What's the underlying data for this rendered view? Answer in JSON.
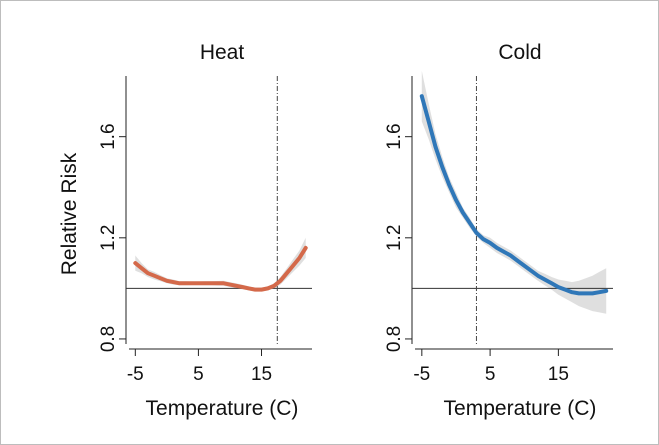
{
  "chart_data": [
    {
      "type": "line",
      "title": "Heat",
      "xlabel": "Temperature (C)",
      "ylabel": "Relative Risk",
      "xlim": [
        -6,
        23
      ],
      "ylim": [
        0.78,
        1.84
      ],
      "xticks": [
        "-5",
        "5",
        "15"
      ],
      "yticks": [
        "0.8",
        "1.2",
        "1.6"
      ],
      "reference_hline": 1.0,
      "threshold_vline": 17.5,
      "line_color": "#d4694a",
      "band_color": "#d9d9d9",
      "series": [
        {
          "x": [
            -5,
            -4,
            -3,
            -2,
            -1,
            0,
            1,
            2,
            3,
            4,
            5,
            6,
            7,
            8,
            9,
            10,
            11,
            12,
            13,
            14,
            15,
            16,
            17,
            18,
            19,
            20,
            21,
            22
          ],
          "values": [
            1.1,
            1.08,
            1.06,
            1.05,
            1.04,
            1.03,
            1.025,
            1.02,
            1.02,
            1.02,
            1.02,
            1.02,
            1.02,
            1.02,
            1.02,
            1.015,
            1.01,
            1.005,
            1.0,
            0.995,
            0.995,
            1.0,
            1.01,
            1.03,
            1.06,
            1.09,
            1.12,
            1.16
          ],
          "lower": [
            1.07,
            1.06,
            1.045,
            1.035,
            1.028,
            1.02,
            1.015,
            1.012,
            1.012,
            1.013,
            1.013,
            1.012,
            1.012,
            1.011,
            1.01,
            1.005,
            1.0,
            0.996,
            0.992,
            0.988,
            0.988,
            0.992,
            1.0,
            1.015,
            1.04,
            1.065,
            1.09,
            1.12
          ],
          "upper": [
            1.13,
            1.1,
            1.075,
            1.065,
            1.052,
            1.04,
            1.035,
            1.028,
            1.028,
            1.027,
            1.027,
            1.028,
            1.028,
            1.029,
            1.03,
            1.025,
            1.02,
            1.014,
            1.008,
            1.002,
            1.002,
            1.008,
            1.02,
            1.045,
            1.08,
            1.115,
            1.15,
            1.2
          ]
        }
      ]
    },
    {
      "type": "line",
      "title": "Cold",
      "xlabel": "Temperature (C)",
      "ylabel": "",
      "xlim": [
        -6,
        23
      ],
      "ylim": [
        0.78,
        1.84
      ],
      "xticks": [
        "-5",
        "5",
        "15"
      ],
      "yticks": [
        "0.8",
        "1.2",
        "1.6"
      ],
      "reference_hline": 1.0,
      "threshold_vline": 3,
      "line_color": "#2f77b8",
      "band_color": "#d9d9d9",
      "series": [
        {
          "x": [
            -5,
            -4,
            -3,
            -2,
            -1,
            0,
            1,
            2,
            3,
            4,
            5,
            6,
            7,
            8,
            9,
            10,
            11,
            12,
            13,
            14,
            15,
            16,
            17,
            18,
            19,
            20,
            21,
            22
          ],
          "values": [
            1.76,
            1.66,
            1.56,
            1.48,
            1.41,
            1.35,
            1.3,
            1.26,
            1.22,
            1.195,
            1.18,
            1.16,
            1.145,
            1.13,
            1.11,
            1.09,
            1.07,
            1.05,
            1.035,
            1.02,
            1.005,
            0.995,
            0.985,
            0.98,
            0.98,
            0.98,
            0.985,
            0.99
          ],
          "lower": [
            1.66,
            1.59,
            1.51,
            1.44,
            1.38,
            1.32,
            1.28,
            1.24,
            1.205,
            1.18,
            1.16,
            1.14,
            1.125,
            1.11,
            1.09,
            1.07,
            1.05,
            1.03,
            1.012,
            0.995,
            0.975,
            0.96,
            0.945,
            0.93,
            0.92,
            0.91,
            0.905,
            0.9
          ],
          "upper": [
            1.86,
            1.73,
            1.61,
            1.52,
            1.44,
            1.38,
            1.32,
            1.28,
            1.235,
            1.21,
            1.2,
            1.18,
            1.165,
            1.15,
            1.13,
            1.11,
            1.09,
            1.07,
            1.058,
            1.045,
            1.035,
            1.03,
            1.025,
            1.03,
            1.04,
            1.05,
            1.065,
            1.08
          ]
        }
      ]
    }
  ]
}
